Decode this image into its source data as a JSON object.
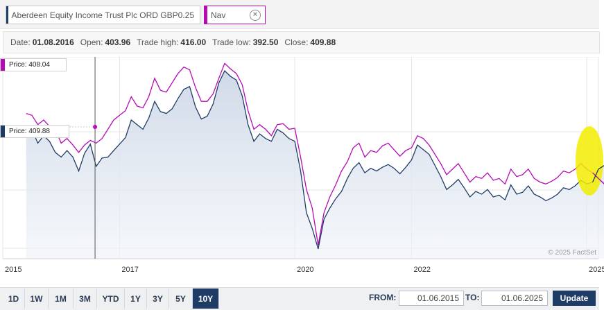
{
  "series_chips": [
    {
      "label": "Aberdeen Equity Income Trust Plc ORD GBP0.25",
      "color": "#1f3c67"
    },
    {
      "label": "Nav",
      "color": "#b50bb5",
      "close_icon": "close-circle-icon"
    }
  ],
  "info": {
    "date_label": "Date:",
    "date": "01.08.2016",
    "open_label": "Open:",
    "open": "403.96",
    "high_label": "Trade high:",
    "high": "416.00",
    "low_label": "Trade low:",
    "low": "392.50",
    "close_label": "Close:",
    "close": "409.88"
  },
  "tooltips": {
    "nav_price": "Price: 408.04",
    "stock_price": "Price: 409.88"
  },
  "watermark": "© 2025 FactSet",
  "range_buttons": [
    "1D",
    "1W",
    "1M",
    "3M",
    "YTD",
    "1Y",
    "3Y",
    "5Y",
    "10Y"
  ],
  "active_range": "10Y",
  "date_range": {
    "from_label": "FROM:",
    "from": "01.06.2015",
    "to_label": "TO:",
    "to": "01.06.2025",
    "update_label": "Update"
  },
  "chart_data": {
    "type": "line",
    "x": [
      2015.4,
      2015.5,
      2015.6,
      2015.7,
      2015.8,
      2015.9,
      2016.0,
      2016.1,
      2016.2,
      2016.3,
      2016.4,
      2016.5,
      2016.6,
      2016.7,
      2016.8,
      2016.9,
      2017.0,
      2017.1,
      2017.2,
      2017.3,
      2017.4,
      2017.5,
      2017.6,
      2017.7,
      2017.8,
      2017.9,
      2018.0,
      2018.1,
      2018.2,
      2018.3,
      2018.4,
      2018.5,
      2018.6,
      2018.7,
      2018.8,
      2018.9,
      2019.0,
      2019.1,
      2019.2,
      2019.3,
      2019.4,
      2019.5,
      2019.6,
      2019.7,
      2019.8,
      2019.9,
      2020.0,
      2020.1,
      2020.2,
      2020.3,
      2020.4,
      2020.5,
      2020.6,
      2020.7,
      2020.8,
      2020.9,
      2021.0,
      2021.1,
      2021.2,
      2021.3,
      2021.4,
      2021.5,
      2021.6,
      2021.7,
      2021.8,
      2021.9,
      2022.0,
      2022.1,
      2022.2,
      2022.3,
      2022.4,
      2022.5,
      2022.6,
      2022.7,
      2022.8,
      2022.9,
      2023.0,
      2023.1,
      2023.2,
      2023.3,
      2023.4,
      2023.5,
      2023.6,
      2023.7,
      2023.8,
      2023.9,
      2024.0,
      2024.1,
      2024.2,
      2024.3,
      2024.4,
      2024.5,
      2024.6,
      2024.7,
      2024.8,
      2024.9,
      2025.0,
      2025.1,
      2025.2,
      2025.3,
      2025.4
    ],
    "series": [
      {
        "name": "Aberdeen Equity Income Trust Plc ORD GBP0.25",
        "color": "#1f3c67",
        "values": [
          418,
          425,
          410,
          418,
          412,
          400,
          395,
          402,
          395,
          380,
          399,
          409,
          385,
          394,
          395,
          402,
          409,
          416,
          435,
          430,
          425,
          437,
          455,
          444,
          442,
          447,
          458,
          468,
          471,
          449,
          436,
          439,
          452,
          475,
          488,
          482,
          478,
          461,
          430,
          412,
          420,
          415,
          412,
          425,
          421,
          415,
          412,
          380,
          335,
          318,
          296,
          328,
          340,
          350,
          358,
          372,
          383,
          389,
          378,
          383,
          380,
          384,
          387,
          383,
          377,
          384,
          392,
          408,
          403,
          398,
          386,
          374,
          360,
          365,
          371,
          362,
          352,
          358,
          355,
          360,
          352,
          354,
          349,
          365,
          355,
          357,
          364,
          355,
          352,
          348,
          351,
          355,
          362,
          360,
          364,
          370,
          366,
          368,
          382,
          386,
          392
        ],
        "x_bind": "x"
      },
      {
        "name": "Nav",
        "color": "#b50bb5",
        "values": [
          442,
          440,
          430,
          435,
          428,
          425,
          410,
          415,
          408,
          400,
          408,
          413,
          410,
          415,
          425,
          435,
          440,
          445,
          460,
          450,
          448,
          460,
          480,
          467,
          465,
          475,
          485,
          492,
          489,
          470,
          455,
          455,
          463,
          480,
          496,
          490,
          485,
          473,
          445,
          425,
          430,
          425,
          418,
          430,
          431,
          425,
          426,
          395,
          360,
          340,
          300,
          335,
          352,
          365,
          380,
          390,
          405,
          410,
          395,
          402,
          400,
          407,
          410,
          403,
          396,
          402,
          405,
          418,
          415,
          408,
          398,
          388,
          376,
          382,
          388,
          378,
          368,
          374,
          372,
          378,
          370,
          372,
          366,
          382,
          374,
          376,
          382,
          372,
          368,
          366,
          369,
          373,
          380,
          378,
          382,
          388,
          382,
          378,
          372,
          366,
          378
        ],
        "x_bind": "x"
      }
    ],
    "x_tick_labels": [
      "2015",
      "2017",
      "2020",
      "2022",
      "2025"
    ],
    "x_tick_values": [
      2015.0,
      2017.0,
      2020.0,
      2022.0,
      2025.0
    ],
    "xlim": [
      2015.0,
      2025.2
    ],
    "ylim": [
      290,
      500
    ],
    "grid": true,
    "crosshair_x": 2016.58
  }
}
